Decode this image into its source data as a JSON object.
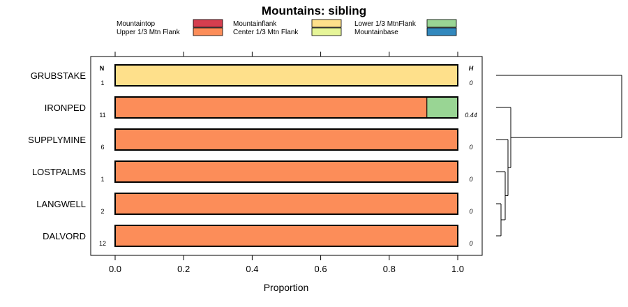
{
  "chart_data": {
    "type": "bar",
    "orientation": "horizontal",
    "stacked": true,
    "title": "Mountains: sibling",
    "xlabel": "Proportion",
    "ylabel": "",
    "xlim": [
      0,
      1
    ],
    "xticks": [
      "0.0",
      "0.2",
      "0.4",
      "0.6",
      "0.8",
      "1.0"
    ],
    "n_header": "N",
    "h_header": "H",
    "legend": [
      {
        "name": "Mountaintop",
        "color": "#d53e4f"
      },
      {
        "name": "Upper 1/3 Mtn Flank",
        "color": "#fc8d59"
      },
      {
        "name": "Mountainflank",
        "color": "#fee08b"
      },
      {
        "name": "Center 1/3 Mtn Flank",
        "color": "#e6f598"
      },
      {
        "name": "Lower 1/3 MtnFlank",
        "color": "#99d594"
      },
      {
        "name": "Mountainbase",
        "color": "#3288bd"
      }
    ],
    "categories": [
      "GRUBSTAKE",
      "IRONPED",
      "SUPPLYMINE",
      "LOSTPALMS",
      "LANGWELL",
      "DALVORD"
    ],
    "n": [
      "1",
      "11",
      "6",
      "1",
      "2",
      "12"
    ],
    "h": [
      "0",
      "0.44",
      "0",
      "0",
      "0",
      "0"
    ],
    "series": [
      {
        "name": "Mountaintop",
        "values": [
          0,
          0,
          0,
          0,
          0,
          0
        ]
      },
      {
        "name": "Upper 1/3 Mtn Flank",
        "values": [
          0,
          0.91,
          1,
          1,
          1,
          1
        ]
      },
      {
        "name": "Mountainflank",
        "values": [
          1,
          0,
          0,
          0,
          0,
          0
        ]
      },
      {
        "name": "Center 1/3 Mtn Flank",
        "values": [
          0,
          0,
          0,
          0,
          0,
          0
        ]
      },
      {
        "name": "Lower 1/3 MtnFlank",
        "values": [
          0,
          0.09,
          0,
          0,
          0,
          0
        ]
      },
      {
        "name": "Mountainbase",
        "values": [
          0,
          0,
          0,
          0,
          0,
          0
        ]
      }
    ],
    "dendrogram": "cluster tree joining rows (LANGWELL, DALVORD), then LOSTPALMS, SUPPLYMINE, IRONPED, and finally GRUBSTAKE"
  }
}
